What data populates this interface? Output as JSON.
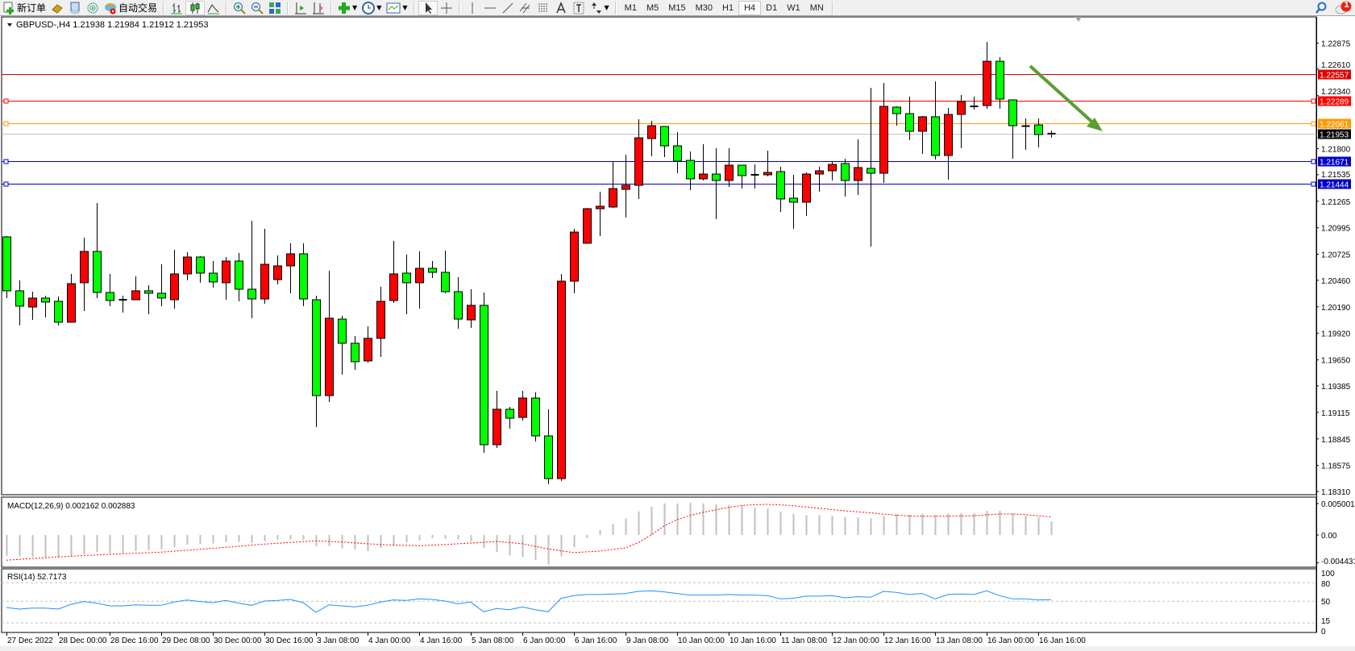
{
  "toolbar": {
    "new_order_label": "新订单",
    "auto_trading_label": "自动交易",
    "timeframes": [
      "M1",
      "M5",
      "M15",
      "M30",
      "H1",
      "H4",
      "D1",
      "W1",
      "MN"
    ],
    "active_timeframe": "H4",
    "notification_count": "1"
  },
  "chart": {
    "header": "GBPUSD-,H4  1.21938 1.21984 1.21912 1.21953",
    "colors": {
      "bull": "#ff0000",
      "bear": "#00ff00",
      "outline": "#000000",
      "arrow": "#5a9e32"
    },
    "price_labels": [
      "1.22875",
      "1.22610",
      "1.22340",
      "1.21800",
      "1.21535",
      "1.21265",
      "1.20995",
      "1.20725",
      "1.20460",
      "1.20190",
      "1.19920",
      "1.19650",
      "1.19385",
      "1.19115",
      "1.18845",
      "1.18575",
      "1.18310"
    ],
    "levels": [
      {
        "price": "1.22557",
        "color": "#e00000",
        "tag_text": "#ffffff"
      },
      {
        "price": "1.22289",
        "color": "#ff0000",
        "tag_text": "#ffffff"
      },
      {
        "price": "1.22061",
        "color": "#ff9900",
        "tag_text": "#ffffff"
      },
      {
        "price": "1.21953",
        "color": "#c0c0c0",
        "tag_bg": "#000000",
        "tag_text": "#ffffff"
      },
      {
        "price": "1.21671",
        "color": "#0000c8",
        "tag_text": "#ffffff"
      },
      {
        "price": "1.21444",
        "color": "#0000c8",
        "tag_text": "#ffffff"
      }
    ],
    "time_labels": [
      "27 Dec 2022",
      "28 Dec 00:00",
      "28 Dec 16:00",
      "29 Dec 08:00",
      "30 Dec 00:00",
      "30 Dec 16:00",
      "3 Jan 08:00",
      "4 Jan 00:00",
      "4 Jan 16:00",
      "5 Jan 08:00",
      "6 Jan 00:00",
      "6 Jan 16:00",
      "9 Jan 08:00",
      "10 Jan 00:00",
      "10 Jan 16:00",
      "11 Jan 08:00",
      "12 Jan 00:00",
      "12 Jan 16:00",
      "13 Jan 08:00",
      "16 Jan 00:00",
      "16 Jan 16:00"
    ]
  },
  "chart_data": {
    "type": "candlestick",
    "symbol": "GBPUSD-",
    "timeframe": "H4",
    "ylim": [
      1.1831,
      1.22875
    ],
    "ohlc": [
      [
        1.20902,
        1.2091,
        1.20279,
        1.20353
      ],
      [
        1.20353,
        1.20459,
        1.2,
        1.20197
      ],
      [
        1.20188,
        1.20344,
        1.20057,
        1.20279
      ],
      [
        1.20279,
        1.20303,
        1.20082,
        1.20238
      ],
      [
        1.20246,
        1.20295,
        1.2,
        1.20033
      ],
      [
        1.20033,
        1.20525,
        1.20033,
        1.20426
      ],
      [
        1.20435,
        1.20894,
        1.20147,
        1.20754
      ],
      [
        1.20754,
        1.21247,
        1.20279,
        1.20336
      ],
      [
        1.20336,
        1.20525,
        1.20197,
        1.20254
      ],
      [
        1.20254,
        1.20303,
        1.20131,
        1.20262
      ],
      [
        1.20262,
        1.205,
        1.20262,
        1.20353
      ],
      [
        1.20353,
        1.2041,
        1.20115,
        1.20328
      ],
      [
        1.20328,
        1.20623,
        1.20197,
        1.20279
      ],
      [
        1.20262,
        1.20771,
        1.20172,
        1.20525
      ],
      [
        1.20525,
        1.20746,
        1.20459,
        1.20697
      ],
      [
        1.20697,
        1.20705,
        1.20435,
        1.20533
      ],
      [
        1.20533,
        1.20656,
        1.20385,
        1.20443
      ],
      [
        1.20435,
        1.20697,
        1.20262,
        1.20656
      ],
      [
        1.20656,
        1.20738,
        1.20246,
        1.20369
      ],
      [
        1.20369,
        1.21066,
        1.20074,
        1.2027
      ],
      [
        1.2027,
        1.20984,
        1.20221,
        1.20623
      ],
      [
        1.20467,
        1.20713,
        1.20418,
        1.20607
      ],
      [
        1.20607,
        1.20837,
        1.20328,
        1.2073
      ],
      [
        1.2073,
        1.20837,
        1.20197,
        1.2027
      ],
      [
        1.20262,
        1.20303,
        1.18966,
        1.19286
      ],
      [
        1.19286,
        1.20558,
        1.1922,
        1.20074
      ],
      [
        1.20065,
        1.20098,
        1.19499,
        1.19819
      ],
      [
        1.19819,
        1.19893,
        1.19549,
        1.19631
      ],
      [
        1.19639,
        1.19992,
        1.19623,
        1.19869
      ],
      [
        1.19869,
        1.20394,
        1.1968,
        1.20246
      ],
      [
        1.20254,
        1.20861,
        1.20229,
        1.20525
      ],
      [
        1.20533,
        1.20722,
        1.20115,
        1.20435
      ],
      [
        1.20435,
        1.20754,
        1.20172,
        1.20582
      ],
      [
        1.20582,
        1.20656,
        1.20484,
        1.20541
      ],
      [
        1.20541,
        1.20763,
        1.20328,
        1.20344
      ],
      [
        1.20344,
        1.20492,
        1.19967,
        1.20065
      ],
      [
        1.20057,
        1.20369,
        1.19975,
        1.20205
      ],
      [
        1.20205,
        1.20336,
        1.18704,
        1.18786
      ],
      [
        1.18786,
        1.19335,
        1.18753,
        1.19147
      ],
      [
        1.19147,
        1.19171,
        1.1895,
        1.19056
      ],
      [
        1.19064,
        1.19335,
        1.19032,
        1.19261
      ],
      [
        1.19261,
        1.19319,
        1.18818,
        1.18876
      ],
      [
        1.18876,
        1.19147,
        1.18384,
        1.18441
      ],
      [
        1.18441,
        1.20525,
        1.18417,
        1.20451
      ],
      [
        1.20451,
        1.20984,
        1.20328,
        1.20951
      ],
      [
        1.20837,
        1.21197,
        1.20837,
        1.21189
      ],
      [
        1.21189,
        1.21362,
        1.2091,
        1.21214
      ],
      [
        1.21206,
        1.21665,
        1.21197,
        1.21394
      ],
      [
        1.21386,
        1.21739,
        1.21099,
        1.21427
      ],
      [
        1.21427,
        1.221,
        1.21288,
        1.21911
      ],
      [
        1.21903,
        1.22083,
        1.21722,
        1.22034
      ],
      [
        1.22026,
        1.22026,
        1.21714,
        1.21829
      ],
      [
        1.21829,
        1.21969,
        1.2155,
        1.21673
      ],
      [
        1.21681,
        1.21772,
        1.21378,
        1.21493
      ],
      [
        1.21493,
        1.21846,
        1.21476,
        1.21542
      ],
      [
        1.21542,
        1.21805,
        1.21083,
        1.21476
      ],
      [
        1.21476,
        1.21805,
        1.21411,
        1.21632
      ],
      [
        1.21632,
        1.21632,
        1.21394,
        1.21526
      ],
      [
        1.21526,
        1.2164,
        1.21394,
        1.21534
      ],
      [
        1.21534,
        1.2178,
        1.21518,
        1.21558
      ],
      [
        1.21567,
        1.21616,
        1.21156,
        1.21288
      ],
      [
        1.21296,
        1.21534,
        1.20984,
        1.21255
      ],
      [
        1.21255,
        1.21558,
        1.21115,
        1.21542
      ],
      [
        1.21542,
        1.21616,
        1.21362,
        1.21575
      ],
      [
        1.21575,
        1.21665,
        1.21476,
        1.2164
      ],
      [
        1.21649,
        1.21698,
        1.21312,
        1.21476
      ],
      [
        1.21476,
        1.21895,
        1.21329,
        1.21608
      ],
      [
        1.216,
        1.2242,
        1.20804,
        1.2155
      ],
      [
        1.2155,
        1.22469,
        1.21452,
        1.22231
      ],
      [
        1.22223,
        1.22231,
        1.22034,
        1.22157
      ],
      [
        1.22157,
        1.2233,
        1.21887,
        1.21977
      ],
      [
        1.21977,
        1.22133,
        1.21747,
        1.22125
      ],
      [
        1.22125,
        1.22485,
        1.2169,
        1.21731
      ],
      [
        1.21731,
        1.22215,
        1.21485,
        1.22149
      ],
      [
        1.22149,
        1.22346,
        1.21805,
        1.2228
      ],
      [
        1.22223,
        1.2233,
        1.22198,
        1.22231
      ],
      [
        1.22239,
        1.22887,
        1.22207,
        1.2269
      ],
      [
        1.2269,
        1.22732,
        1.22207,
        1.22305
      ],
      [
        1.22297,
        1.22297,
        1.21698,
        1.22034
      ],
      [
        1.22034,
        1.22108,
        1.21788,
        1.2203
      ],
      [
        1.22042,
        1.22108,
        1.21813,
        1.21944
      ],
      [
        1.21938,
        1.21984,
        1.21912,
        1.21953
      ]
    ],
    "macd": {
      "label": "MACD(12,26,9) 0.002162 0.002883",
      "axis_labels": [
        "0.005001",
        "0.00",
        "-0.004431"
      ],
      "ylim": [
        -0.004431,
        0.005001
      ],
      "histogram": [
        -0.00333,
        -0.00341,
        -0.0035,
        -0.0035,
        -0.00358,
        -0.00341,
        -0.00307,
        -0.00273,
        -0.0029,
        -0.0029,
        -0.00256,
        -0.00239,
        -0.00222,
        -0.00196,
        -0.00154,
        -0.00145,
        -0.00136,
        -0.00111,
        -0.00111,
        -0.00128,
        -0.00102,
        -0.00077,
        -0.00068,
        -0.00077,
        -0.00179,
        -0.00179,
        -0.00213,
        -0.0023,
        -0.00256,
        -0.00205,
        -0.00162,
        -0.00119,
        -0.00085,
        -0.00051,
        -0.0006,
        -0.00068,
        -0.00102,
        -0.00205,
        -0.00273,
        -0.00324,
        -0.0035,
        -0.00401,
        -0.00469,
        -0.00341,
        -0.00196,
        -0.00051,
        0.00077,
        0.00179,
        0.00264,
        0.00375,
        0.00452,
        0.00503,
        0.00503,
        0.00512,
        0.00503,
        0.00486,
        0.00478,
        0.00469,
        0.00435,
        0.00418,
        0.00375,
        0.00333,
        0.00316,
        0.00316,
        0.00307,
        0.0029,
        0.00281,
        0.00264,
        0.00299,
        0.00333,
        0.00324,
        0.00341,
        0.00324,
        0.00341,
        0.0035,
        0.0035,
        0.00384,
        0.00384,
        0.00341,
        0.00307,
        0.00281,
        0.00216
      ],
      "signal": [
        -0.00401,
        -0.00388,
        -0.00375,
        -0.00362,
        -0.0035,
        -0.00339,
        -0.00328,
        -0.00318,
        -0.00307,
        -0.00299,
        -0.0029,
        -0.00282,
        -0.00273,
        -0.00258,
        -0.00243,
        -0.00228,
        -0.00213,
        -0.00196,
        -0.00179,
        -0.00162,
        -0.00145,
        -0.00132,
        -0.00119,
        -0.00106,
        -0.00094,
        -0.00102,
        -0.00111,
        -0.00125,
        -0.0014,
        -0.00151,
        -0.00162,
        -0.00166,
        -0.0017,
        -0.00162,
        -0.00153,
        -0.0014,
        -0.00128,
        -0.00115,
        -0.00102,
        -0.0012,
        -0.0014,
        -0.00181,
        -0.00222,
        -0.00252,
        -0.00281,
        -0.00268,
        -0.00256,
        -0.0023,
        -0.00205,
        -0.0012,
        0.0,
        0.00145,
        0.00243,
        0.0031,
        0.0036,
        0.004,
        0.0044,
        0.00469,
        0.00482,
        0.00487,
        0.0048,
        0.00465,
        0.00445,
        0.00425,
        0.00405,
        0.00385,
        0.00368,
        0.00352,
        0.00332,
        0.00315,
        0.00302,
        0.00299,
        0.00299,
        0.003,
        0.00302,
        0.00307,
        0.0032,
        0.00333,
        0.00333,
        0.00325,
        0.00305,
        0.00288
      ]
    },
    "rsi": {
      "label": "RSI(14) 52.7173",
      "axis_labels": [
        "100",
        "80",
        "50",
        "15",
        "0"
      ],
      "levels": [
        80,
        50,
        15
      ],
      "values": [
        40,
        37.4,
        39,
        39,
        37.4,
        45,
        49.6,
        47,
        42.6,
        42.6,
        44.3,
        43.5,
        43.5,
        48.7,
        52,
        49.6,
        47.8,
        51.3,
        47,
        43.5,
        50.4,
        51.3,
        53,
        47.8,
        32.2,
        44.3,
        42.6,
        40.9,
        43.5,
        48.7,
        52.2,
        51.3,
        53.9,
        53,
        50.4,
        46,
        48.7,
        33,
        38.3,
        36.5,
        40.9,
        36.5,
        33,
        54.8,
        59.1,
        60.9,
        60.9,
        61.7,
        62.6,
        66.1,
        67,
        65.2,
        62.6,
        60,
        60,
        60,
        60.9,
        60,
        60,
        59.1,
        53.9,
        54.8,
        58.3,
        58.3,
        59.1,
        55.7,
        57.4,
        56.5,
        66.1,
        64.3,
        60.9,
        62.6,
        53.9,
        60.9,
        61.7,
        60.9,
        67,
        59.1,
        53.9,
        53.9,
        52.2,
        52.7173
      ]
    }
  }
}
